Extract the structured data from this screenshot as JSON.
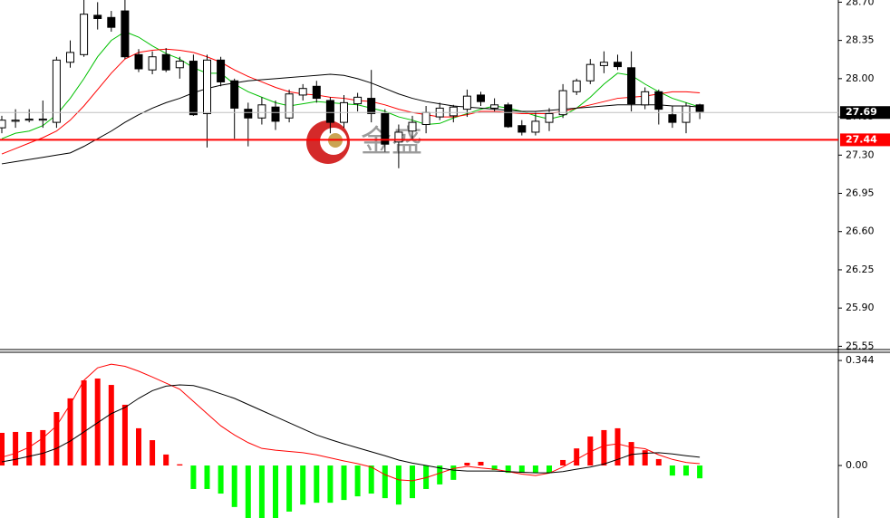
{
  "chart_data": [
    {
      "type": "candlestick",
      "open": [
        27.55,
        27.61,
        27.62,
        27.62,
        27.6,
        28.15,
        28.22,
        28.58,
        28.56,
        28.62,
        28.22,
        28.08,
        28.22,
        28.1,
        28.16,
        27.68,
        28.17,
        27.98,
        27.72,
        27.64,
        27.74,
        27.64,
        27.85,
        27.93,
        27.8,
        27.6,
        27.77,
        27.82,
        27.68,
        27.42,
        27.52,
        27.58,
        27.65,
        27.66,
        27.72,
        27.85,
        27.73,
        27.76,
        27.57,
        27.51,
        27.6,
        27.67,
        27.88,
        27.98,
        28.12,
        28.15,
        28.1,
        27.76,
        27.88,
        27.67,
        27.6,
        27.76
      ],
      "high": [
        27.66,
        27.72,
        27.72,
        27.8,
        28.2,
        28.35,
        28.72,
        28.7,
        28.62,
        28.72,
        28.27,
        28.25,
        28.28,
        28.2,
        28.22,
        28.22,
        28.2,
        28.0,
        27.78,
        27.83,
        27.8,
        27.9,
        27.95,
        27.98,
        27.83,
        27.85,
        27.87,
        28.08,
        27.72,
        27.58,
        27.66,
        27.75,
        27.78,
        27.76,
        27.9,
        27.88,
        27.82,
        27.78,
        27.62,
        27.7,
        27.73,
        27.95,
        28.0,
        28.18,
        28.25,
        28.22,
        28.25,
        27.92,
        27.9,
        27.75,
        27.78,
        27.77
      ],
      "low": [
        27.5,
        27.55,
        27.6,
        27.55,
        27.55,
        28.1,
        28.2,
        28.45,
        28.43,
        28.18,
        28.06,
        28.04,
        28.06,
        28.0,
        27.66,
        27.37,
        27.93,
        27.45,
        27.38,
        27.58,
        27.53,
        27.6,
        27.8,
        27.78,
        27.5,
        27.55,
        27.7,
        27.6,
        27.33,
        27.18,
        27.45,
        27.5,
        27.62,
        27.6,
        27.65,
        27.75,
        27.7,
        27.55,
        27.48,
        27.48,
        27.52,
        27.64,
        27.85,
        27.95,
        28.05,
        28.08,
        27.7,
        27.72,
        27.58,
        27.55,
        27.5,
        27.63
      ],
      "close": [
        27.62,
        27.62,
        27.63,
        27.63,
        28.17,
        28.24,
        28.59,
        28.55,
        28.47,
        28.2,
        28.09,
        28.2,
        28.08,
        28.16,
        27.67,
        28.17,
        27.97,
        27.73,
        27.64,
        27.76,
        27.61,
        27.86,
        27.91,
        27.82,
        27.6,
        27.78,
        27.83,
        27.68,
        27.4,
        27.51,
        27.6,
        27.69,
        27.73,
        27.74,
        27.84,
        27.79,
        27.76,
        27.56,
        27.51,
        27.61,
        27.68,
        27.89,
        27.98,
        28.13,
        28.15,
        28.11,
        27.77,
        27.88,
        27.72,
        27.6,
        27.75,
        27.7
      ],
      "up_color": "#ffffff",
      "down_color": "#000000",
      "lines": [
        {
          "color": "#00c000",
          "values": [
            27.45,
            27.5,
            27.52,
            27.57,
            27.67,
            27.82,
            28.0,
            28.2,
            28.35,
            28.43,
            28.38,
            28.3,
            28.23,
            28.18,
            28.1,
            28.05,
            28.05,
            27.95,
            27.88,
            27.83,
            27.78,
            27.75,
            27.77,
            27.79,
            27.78,
            27.77,
            27.76,
            27.73,
            27.7,
            27.65,
            27.62,
            27.58,
            27.59,
            27.64,
            27.68,
            27.72,
            27.75,
            27.73,
            27.7,
            27.66,
            27.63,
            27.66,
            27.73,
            27.83,
            27.95,
            28.05,
            28.03,
            27.95,
            27.88,
            27.82,
            27.78,
            27.74
          ]
        },
        {
          "color": "#ff0000",
          "values": [
            27.31,
            27.36,
            27.41,
            27.46,
            27.52,
            27.62,
            27.75,
            27.9,
            28.05,
            28.18,
            28.24,
            28.26,
            28.27,
            28.26,
            28.24,
            28.2,
            28.15,
            28.08,
            28.02,
            27.97,
            27.92,
            27.88,
            27.86,
            27.85,
            27.83,
            27.82,
            27.8,
            27.79,
            27.76,
            27.72,
            27.69,
            27.67,
            27.65,
            27.65,
            27.67,
            27.7,
            27.7,
            27.69,
            27.68,
            27.68,
            27.68,
            27.7,
            27.73,
            27.76,
            27.79,
            27.82,
            27.83,
            27.84,
            27.86,
            27.88,
            27.88,
            27.87
          ]
        },
        {
          "color": "#000000",
          "values": [
            27.22,
            27.24,
            27.26,
            27.28,
            27.3,
            27.32,
            27.38,
            27.45,
            27.52,
            27.6,
            27.67,
            27.73,
            27.78,
            27.82,
            27.87,
            27.91,
            27.94,
            27.96,
            27.98,
            27.99,
            28.0,
            28.01,
            28.02,
            28.03,
            28.04,
            28.03,
            28.0,
            27.96,
            27.91,
            27.86,
            27.82,
            27.79,
            27.77,
            27.75,
            27.74,
            27.73,
            27.72,
            27.71,
            27.7,
            27.7,
            27.71,
            27.72,
            27.73,
            27.74,
            27.75,
            27.76,
            27.76,
            27.76,
            27.76,
            27.75,
            27.75,
            27.74
          ]
        }
      ],
      "ylim": [
        25.52,
        28.72
      ],
      "yticks": [
        {
          "value": 28.7,
          "label": "28.70"
        },
        28.35,
        {
          "value": 28,
          "label": "28.00"
        },
        27.65,
        {
          "value": 27.3,
          "label": "27.30"
        },
        26.95,
        {
          "value": 26.6,
          "label": "26.60"
        },
        26.25,
        {
          "value": 25.9,
          "label": "25.90"
        },
        25.55
      ],
      "levels": [
        {
          "value": 27.69,
          "color": "#c0c0c0",
          "label_color": "#000000"
        },
        {
          "value": 27.44,
          "color": "#ff0000",
          "label_color": "#ff0000"
        }
      ],
      "watermark": "金盛"
    },
    {
      "type": "macd",
      "histogram": [
        0.107,
        0.11,
        0.11,
        0.116,
        0.175,
        0.22,
        0.279,
        0.285,
        0.264,
        0.199,
        0.122,
        0.083,
        0.036,
        0.004,
        -0.077,
        -0.077,
        -0.092,
        -0.136,
        -0.172,
        -0.172,
        -0.172,
        -0.151,
        -0.128,
        -0.122,
        -0.122,
        -0.113,
        -0.101,
        -0.092,
        -0.107,
        -0.128,
        -0.107,
        -0.077,
        -0.062,
        -0.047,
        0.009,
        0.012,
        -0.015,
        -0.024,
        -0.024,
        -0.024,
        -0.024,
        0.018,
        0.056,
        0.095,
        0.116,
        0.122,
        0.077,
        0.05,
        0.021,
        -0.033,
        -0.033,
        -0.042
      ],
      "pos_color": "#ff0000",
      "neg_color": "#00ff00",
      "lines": [
        {
          "color": "#ff0000",
          "values": [
            0.027,
            0.04,
            0.06,
            0.09,
            0.13,
            0.2,
            0.279,
            0.32,
            0.332,
            0.325,
            0.309,
            0.29,
            0.27,
            0.25,
            0.21,
            0.17,
            0.13,
            0.1,
            0.075,
            0.056,
            0.05,
            0.046,
            0.042,
            0.035,
            0.025,
            0.015,
            0.006,
            -0.005,
            -0.03,
            -0.047,
            -0.05,
            -0.04,
            -0.025,
            -0.01,
            -0.003,
            -0.008,
            -0.012,
            -0.02,
            -0.028,
            -0.033,
            -0.025,
            -0.005,
            0.02,
            0.045,
            0.065,
            0.071,
            0.06,
            0.055,
            0.035,
            0.02,
            0.01,
            0.006
          ]
        },
        {
          "color": "#000000",
          "values": [
            0.012,
            0.02,
            0.03,
            0.04,
            0.056,
            0.08,
            0.11,
            0.14,
            0.17,
            0.19,
            0.22,
            0.245,
            0.26,
            0.264,
            0.262,
            0.25,
            0.235,
            0.22,
            0.2,
            0.18,
            0.16,
            0.14,
            0.12,
            0.1,
            0.085,
            0.071,
            0.058,
            0.045,
            0.032,
            0.018,
            0.008,
            0,
            -0.008,
            -0.015,
            -0.018,
            -0.018,
            -0.018,
            -0.02,
            -0.022,
            -0.024,
            -0.024,
            -0.02,
            -0.012,
            -0.005,
            0.005,
            0.02,
            0.036,
            0.04,
            0.042,
            0.038,
            0.032,
            0.027
          ]
        }
      ],
      "ylim": [
        -0.172,
        0.368
      ],
      "yticks": [
        0.344,
        {
          "value": 0,
          "label": "0.00"
        }
      ]
    }
  ]
}
